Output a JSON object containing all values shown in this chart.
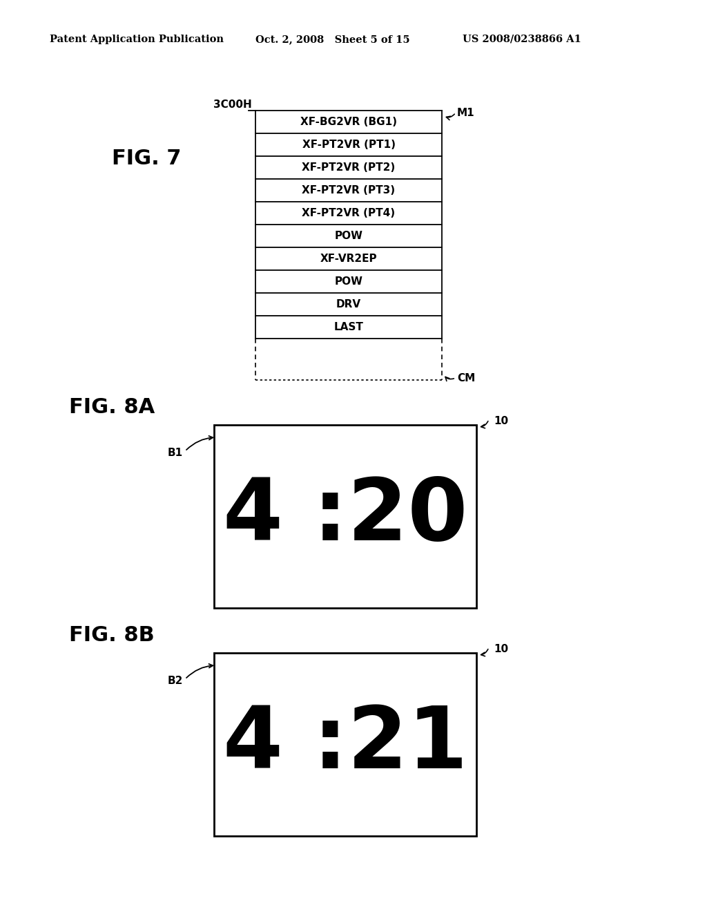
{
  "bg_color": "#ffffff",
  "header_left": "Patent Application Publication",
  "header_mid": "Oct. 2, 2008   Sheet 5 of 15",
  "header_right": "US 2008/0238866 A1",
  "fig7_label": "FIG. 7",
  "fig7_address": "3C00H",
  "fig7_m1_label": "M1",
  "fig7_cm_label": "CM",
  "fig7_rows": [
    "XF-BG2VR (BG1)",
    "XF-PT2VR (PT1)",
    "XF-PT2VR (PT2)",
    "XF-PT2VR (PT3)",
    "XF-PT2VR (PT4)",
    "POW",
    "XF-VR2EP",
    "POW",
    "DRV",
    "LAST"
  ],
  "fig8a_label": "FIG. 8A",
  "fig8a_b_label": "B1",
  "fig8a_10_label": "10",
  "fig8a_text": "4 :20",
  "fig8b_label": "FIG. 8B",
  "fig8b_b_label": "B2",
  "fig8b_10_label": "10",
  "fig8b_text": "4 :21"
}
